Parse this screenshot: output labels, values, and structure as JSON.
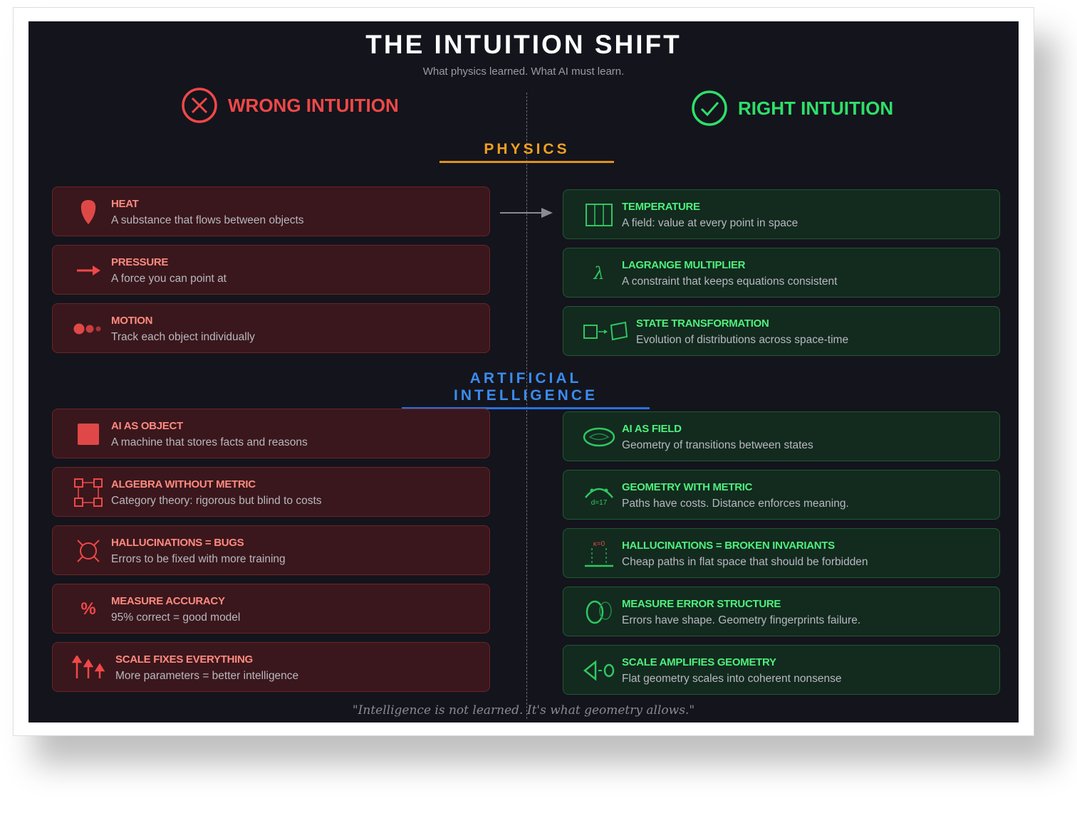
{
  "title": "THE INTUITION SHIFT",
  "subtitle": "What physics learned. What AI must learn.",
  "wrong_heading": "WRONG INTUITION",
  "right_heading": "RIGHT INTUITION",
  "sections": {
    "physics": "PHYSICS",
    "ai": "ARTIFICIAL INTELLIGENCE"
  },
  "colors": {
    "wrong": "#f04848",
    "right": "#2ee06a",
    "physics": "#f0a020",
    "ai": "#3a8cf0",
    "background": "#14141c"
  },
  "physics_wrong": [
    {
      "title": "HEAT",
      "desc": "A substance that flows between objects",
      "icon": "drop-icon"
    },
    {
      "title": "PRESSURE",
      "desc": "A force you can point at",
      "icon": "arrow-right-icon"
    },
    {
      "title": "MOTION",
      "desc": "Track each object individually",
      "icon": "dots-icon"
    }
  ],
  "physics_right": [
    {
      "title": "TEMPERATURE",
      "desc": "A field: value at every point in space",
      "icon": "field-grid-icon"
    },
    {
      "title": "LAGRANGE MULTIPLIER",
      "desc": "A constraint that keeps equations consistent",
      "icon": "lambda-icon",
      "symbol": "λ"
    },
    {
      "title": "STATE TRANSFORMATION",
      "desc": "Evolution of distributions across space-time",
      "icon": "transform-icon"
    }
  ],
  "ai_wrong": [
    {
      "title": "AI AS OBJECT",
      "desc": "A machine that stores facts and reasons",
      "icon": "square-icon"
    },
    {
      "title": "ALGEBRA WITHOUT METRIC",
      "desc": "Category theory: rigorous but blind to costs",
      "icon": "category-diagram-icon"
    },
    {
      "title": "HALLUCINATIONS = BUGS",
      "desc": "Errors to be fixed with more training",
      "icon": "bug-icon"
    },
    {
      "title": "MEASURE ACCURACY",
      "desc": "95% correct = good model",
      "icon": "percent-icon",
      "symbol": "%"
    },
    {
      "title": "SCALE FIXES EVERYTHING",
      "desc": "More parameters = better intelligence",
      "icon": "arrows-up-icon"
    }
  ],
  "ai_right": [
    {
      "title": "AI AS FIELD",
      "desc": "Geometry of transitions between states",
      "icon": "torus-icon"
    },
    {
      "title": "GEOMETRY WITH METRIC",
      "desc": "Paths have costs. Distance enforces meaning.",
      "icon": "arc-metric-icon",
      "label": "d=17"
    },
    {
      "title": "HALLUCINATIONS = BROKEN INVARIANTS",
      "desc": "Cheap paths in flat space that should be forbidden",
      "icon": "flat-curvature-icon",
      "label": "κ=0"
    },
    {
      "title": "MEASURE ERROR STRUCTURE",
      "desc": "Errors have shape. Geometry fingerprints failure.",
      "icon": "ellipses-icon"
    },
    {
      "title": "SCALE AMPLIFIES GEOMETRY",
      "desc": "Flat geometry scales into coherent nonsense",
      "icon": "triangle-circle-icon"
    }
  ],
  "quote": "\"Intelligence is not learned. It's what geometry allows.\""
}
